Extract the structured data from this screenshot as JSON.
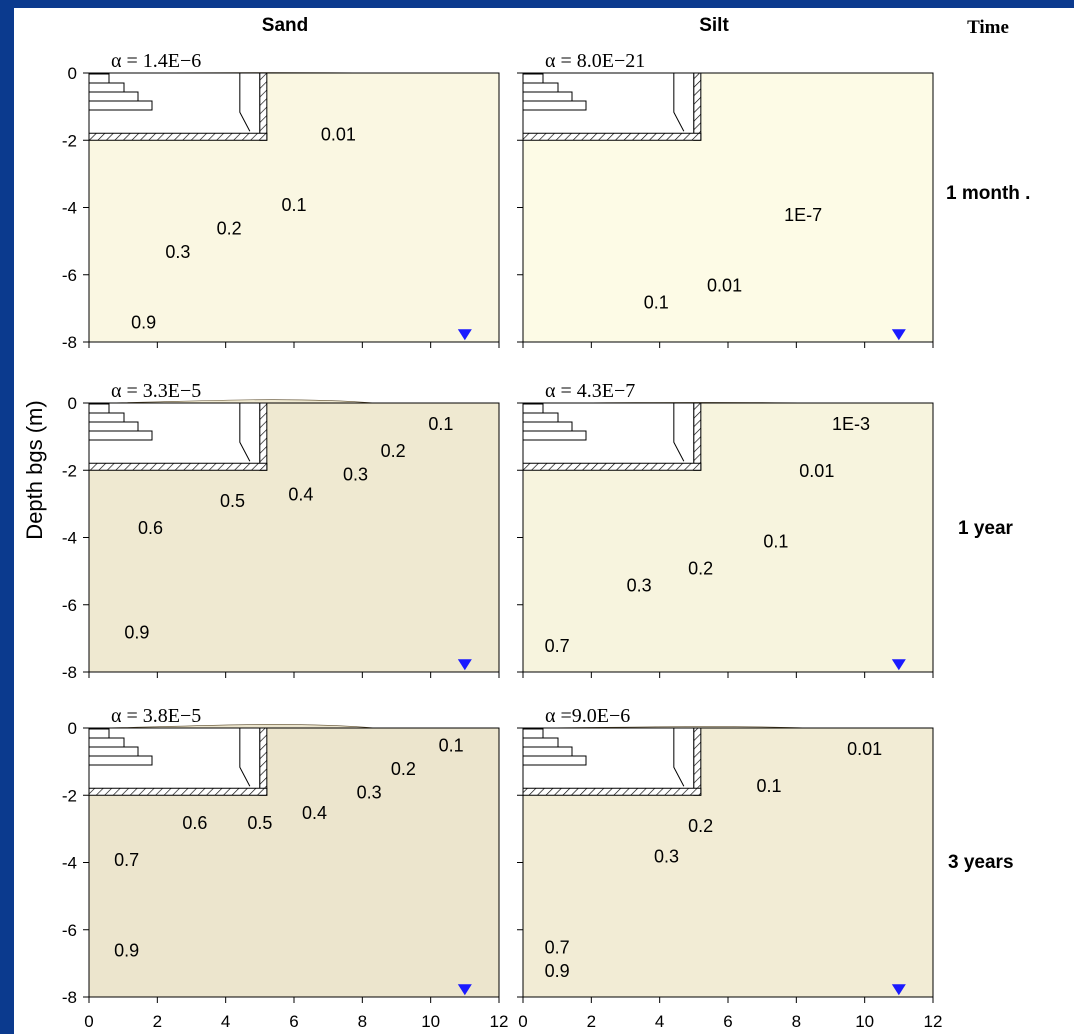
{
  "columns": {
    "sand": "Sand",
    "silt": "Silt",
    "time": "Time"
  },
  "ylabel": "Depth bgs (m)",
  "rows": [
    {
      "time_label": "1 month  ."
    },
    {
      "time_label": "1 year"
    },
    {
      "time_label": "3 years"
    }
  ],
  "colors": {
    "light": "#fdfbe6",
    "dark": "#6e4416",
    "watertable": "#1a1aff",
    "frame": "#0b3a8e"
  },
  "chart_data": [
    {
      "type": "heatmap",
      "soil": "Sand",
      "time": "1 month",
      "alpha_label": "α = 1.4E−6",
      "xlim": [
        0,
        12
      ],
      "ylim": [
        -8,
        0
      ],
      "x_ticks": [
        0,
        2,
        4,
        6,
        8,
        10,
        12
      ],
      "y_ticks": [
        "0",
        "-2",
        "-4",
        "-6",
        "-8"
      ],
      "contour_labels": [
        {
          "text": "0.01",
          "x": 7.3,
          "y": -2.0
        },
        {
          "text": "0.1",
          "x": 6.0,
          "y": -4.1
        },
        {
          "text": "0.2",
          "x": 4.1,
          "y": -4.8
        },
        {
          "text": "0.3",
          "x": 2.6,
          "y": -5.5
        },
        {
          "text": "0.9",
          "x": 1.6,
          "y": -7.6
        }
      ]
    },
    {
      "type": "heatmap",
      "soil": "Silt",
      "time": "1 month",
      "alpha_label": "α = 8.0E−21",
      "xlim": [
        0,
        12
      ],
      "ylim": [
        -8,
        0
      ],
      "x_ticks": [
        0,
        2,
        4,
        6,
        8,
        10,
        12
      ],
      "y_ticks": [
        "0",
        "-2",
        "-4",
        "-6",
        "-8"
      ],
      "contour_labels": [
        {
          "text": "1E-7",
          "x": 8.2,
          "y": -4.4
        },
        {
          "text": "0.01",
          "x": 5.9,
          "y": -6.5
        },
        {
          "text": "0.1",
          "x": 3.9,
          "y": -7.0
        }
      ]
    },
    {
      "type": "heatmap",
      "soil": "Sand",
      "time": "1 year",
      "alpha_label": "α = 3.3E−5",
      "xlim": [
        0,
        12
      ],
      "ylim": [
        -8,
        0
      ],
      "x_ticks": [
        0,
        2,
        4,
        6,
        8,
        10,
        12
      ],
      "y_ticks": [
        "0",
        "-2",
        "-4",
        "-6",
        "-8"
      ],
      "contour_labels": [
        {
          "text": "0.1",
          "x": 10.3,
          "y": -0.8
        },
        {
          "text": "0.2",
          "x": 8.9,
          "y": -1.6
        },
        {
          "text": "0.3",
          "x": 7.8,
          "y": -2.3
        },
        {
          "text": "0.4",
          "x": 6.2,
          "y": -2.9
        },
        {
          "text": "0.5",
          "x": 4.2,
          "y": -3.1
        },
        {
          "text": "0.6",
          "x": 1.8,
          "y": -3.9
        },
        {
          "text": "0.9",
          "x": 1.4,
          "y": -7.0
        }
      ]
    },
    {
      "type": "heatmap",
      "soil": "Silt",
      "time": "1 year",
      "alpha_label": "α = 4.3E−7",
      "xlim": [
        0,
        12
      ],
      "ylim": [
        -8,
        0
      ],
      "x_ticks": [
        0,
        2,
        4,
        6,
        8,
        10,
        12
      ],
      "y_ticks": [
        "0",
        "-2",
        "-4",
        "-6",
        "-8"
      ],
      "contour_labels": [
        {
          "text": "1E-3",
          "x": 9.6,
          "y": -0.8
        },
        {
          "text": "0.01",
          "x": 8.6,
          "y": -2.2
        },
        {
          "text": "0.1",
          "x": 7.4,
          "y": -4.3
        },
        {
          "text": "0.2",
          "x": 5.2,
          "y": -5.1
        },
        {
          "text": "0.3",
          "x": 3.4,
          "y": -5.6
        },
        {
          "text": "0.7",
          "x": 1.0,
          "y": -7.4
        }
      ]
    },
    {
      "type": "heatmap",
      "soil": "Sand",
      "time": "3 years",
      "alpha_label": "α = 3.8E−5",
      "xlim": [
        0,
        12
      ],
      "ylim": [
        -8,
        0
      ],
      "x_ticks": [
        0,
        2,
        4,
        6,
        8,
        10,
        12
      ],
      "y_ticks": [
        "0",
        "-2",
        "-4",
        "-6",
        "-8"
      ],
      "contour_labels": [
        {
          "text": "0.1",
          "x": 10.6,
          "y": -0.7
        },
        {
          "text": "0.2",
          "x": 9.2,
          "y": -1.4
        },
        {
          "text": "0.3",
          "x": 8.2,
          "y": -2.1
        },
        {
          "text": "0.4",
          "x": 6.6,
          "y": -2.7
        },
        {
          "text": "0.5",
          "x": 5.0,
          "y": -3.0
        },
        {
          "text": "0.6",
          "x": 3.1,
          "y": -3.0
        },
        {
          "text": "0.7",
          "x": 1.1,
          "y": -4.1
        },
        {
          "text": "0.9",
          "x": 1.1,
          "y": -6.8
        }
      ]
    },
    {
      "type": "heatmap",
      "soil": "Silt",
      "time": "3 years",
      "alpha_label": "α =9.0E−6",
      "xlim": [
        0,
        12
      ],
      "ylim": [
        -8,
        0
      ],
      "x_ticks": [
        0,
        2,
        4,
        6,
        8,
        10,
        12
      ],
      "y_ticks": [
        "0",
        "-2",
        "-4",
        "-6",
        "-8"
      ],
      "contour_labels": [
        {
          "text": "0.01",
          "x": 10.0,
          "y": -0.8
        },
        {
          "text": "0.1",
          "x": 7.2,
          "y": -1.9
        },
        {
          "text": "0.2",
          "x": 5.2,
          "y": -3.1
        },
        {
          "text": "0.3",
          "x": 4.2,
          "y": -4.0
        },
        {
          "text": "0.7",
          "x": 1.0,
          "y": -6.7
        },
        {
          "text": "0.9",
          "x": 1.0,
          "y": -7.4
        }
      ]
    }
  ]
}
